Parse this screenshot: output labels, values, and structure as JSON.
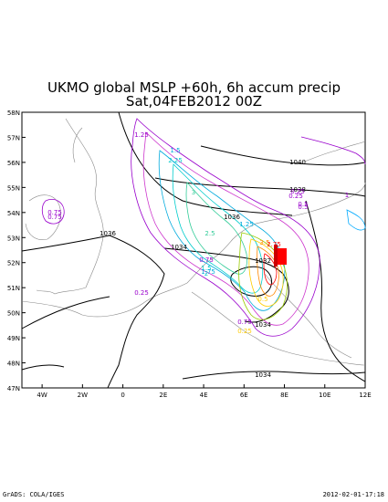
{
  "title_line1": "UKMO global MSLP +60h, 6h accum precip",
  "title_line2": "Sat,04FEB2012 00Z",
  "footer_left": "GrADS: COLA/IGES",
  "footer_right": "2012-02-01-17:18",
  "lat_labels": [
    "58N",
    "57N",
    "56N",
    "55N",
    "54N",
    "53N",
    "52N",
    "51N",
    "50N",
    "49N",
    "48N",
    "47N"
  ],
  "lon_labels": [
    "4W",
    "2W",
    "0",
    "2E",
    "4E",
    "6E",
    "8E",
    "10E",
    "12E"
  ],
  "isobar_labels": [
    "1040",
    "1038",
    "1036",
    "1036",
    "1034",
    "1032",
    "1034",
    "1034"
  ],
  "precip_labels": [
    "1.25",
    "1.5",
    "2.25",
    "3",
    "0.75",
    "0.25",
    "0.5",
    "1",
    "2.5",
    "3.5",
    "1.5",
    "2",
    "0.75",
    "1.75",
    "2.75",
    "1.25",
    "0.25",
    "0.5",
    "0.75",
    "0.25",
    "0.75",
    "0.25",
    "0.5"
  ],
  "colors": {
    "isobar": "#000000",
    "coast": "#888888",
    "precip_low": "#9900cc",
    "precip_mid": "#00cccc",
    "precip_high": "#ff0000"
  }
}
